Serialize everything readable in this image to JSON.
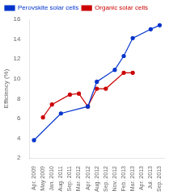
{
  "chart_data": {
    "type": "line",
    "categories": [
      "Apr. 2009",
      "May 2009",
      "Jan. 2010",
      "Aug. 2011",
      "Sep. 2011",
      "Mar. 2012",
      "Apr. 2012",
      "Aug. 2012",
      "Sep. 2012",
      "Nov. 2012",
      "Feb. 2013",
      "Mar. 2013",
      "Apr. 2013",
      "Jul. 2013",
      "Sep. 2013"
    ],
    "series": [
      {
        "name": "Perovskite solar cells",
        "color": "#0033cc",
        "marker": "circle",
        "line_style": "solid",
        "values": [
          3.8,
          null,
          null,
          6.5,
          null,
          null,
          7.2,
          9.7,
          null,
          10.9,
          12.3,
          14.1,
          null,
          15.0,
          15.4
        ]
      },
      {
        "name": "Organic solar cells",
        "color": "#cc0000",
        "marker": "circle",
        "line_style": "solid",
        "values": [
          null,
          6.1,
          7.4,
          null,
          8.4,
          8.5,
          7.2,
          9.0,
          9.0,
          null,
          10.6,
          10.6,
          null,
          null,
          null
        ]
      }
    ],
    "ylabel": "Efficiency (%)",
    "ylim": [
      2,
      16
    ],
    "yticks": [
      2,
      4,
      6,
      8,
      10,
      12,
      14,
      16
    ],
    "grid": false,
    "legend": "upper left"
  }
}
